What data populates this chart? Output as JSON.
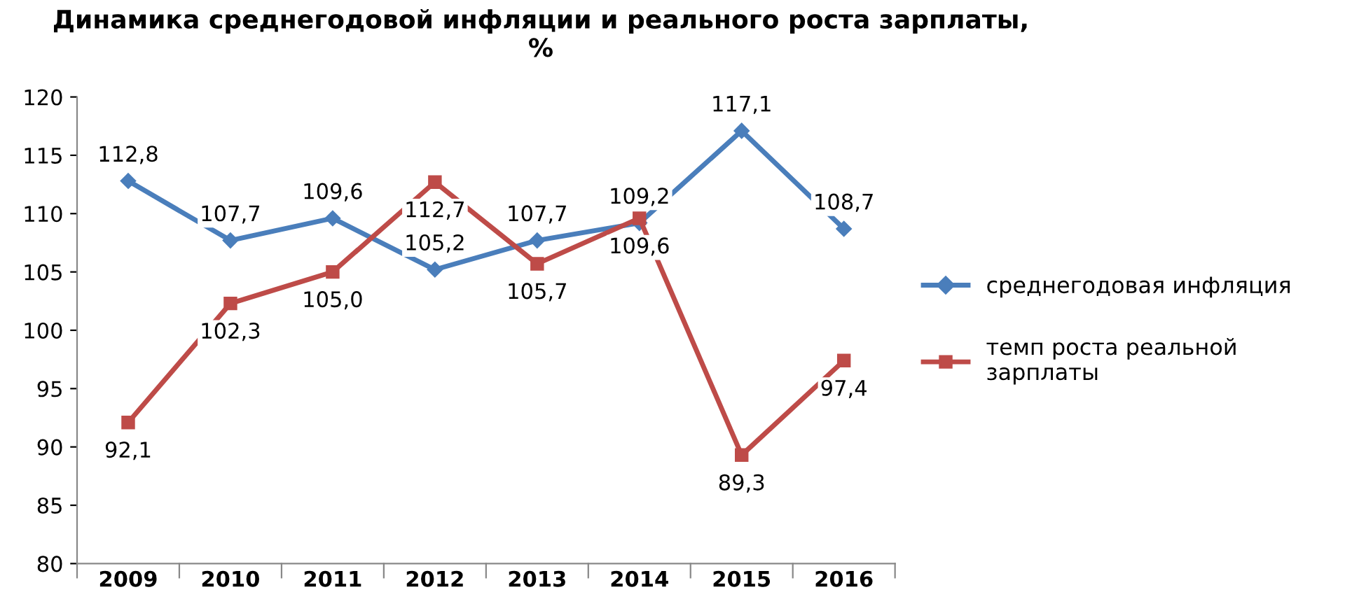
{
  "chart_data": {
    "type": "line",
    "title": "Динамика среднегодовой инфляции и реального роста зарплаты,\n%",
    "categories": [
      "2009",
      "2010",
      "2011",
      "2012",
      "2013",
      "2014",
      "2015",
      "2016"
    ],
    "series": [
      {
        "name": "среднегодовая инфляция",
        "color": "#4a7ebb",
        "marker": "diamond",
        "values": [
          112.8,
          107.7,
          109.6,
          105.2,
          107.7,
          109.2,
          117.1,
          108.7
        ],
        "value_labels": [
          "112,8",
          "107,7",
          "109,6",
          "105,2",
          "107,7",
          "109,2",
          "117,1",
          "108,7"
        ]
      },
      {
        "name": "темп роста реальной зарплаты",
        "color": "#be4b48",
        "marker": "square",
        "values": [
          92.1,
          102.3,
          105.0,
          112.7,
          105.7,
          109.6,
          89.3,
          97.4
        ],
        "value_labels": [
          "92,1",
          "102,3",
          "105,0",
          "112,7",
          "105,7",
          "109,6",
          "89,3",
          "97,4"
        ]
      }
    ],
    "ylim": [
      80,
      120
    ],
    "yticks": [
      80,
      85,
      90,
      95,
      100,
      105,
      110,
      115,
      120
    ],
    "grid": false,
    "legend": "right",
    "line_style": "solid"
  }
}
